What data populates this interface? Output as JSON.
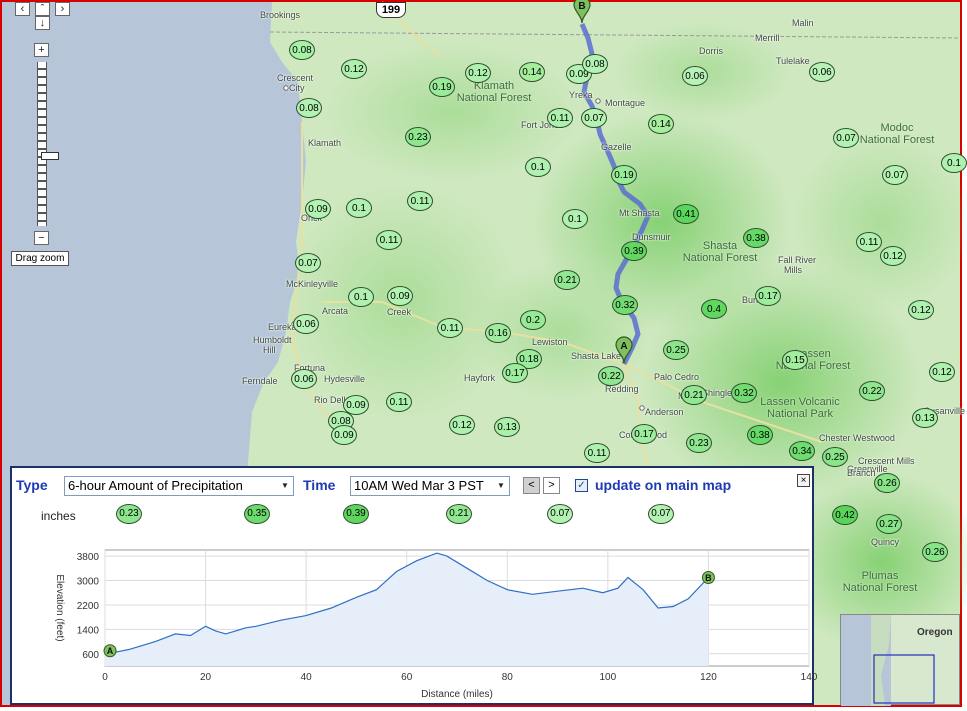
{
  "map": {
    "markers": [
      {
        "v": "0.08",
        "x": 300,
        "y": 48,
        "c": "#a8f2a8"
      },
      {
        "v": "0.12",
        "x": 352,
        "y": 67,
        "c": "#aef0ae"
      },
      {
        "v": "0.19",
        "x": 440,
        "y": 85,
        "c": "#98ec98"
      },
      {
        "v": "0.12",
        "x": 476,
        "y": 71,
        "c": "#aef0ae"
      },
      {
        "v": "0.14",
        "x": 530,
        "y": 70,
        "c": "#a6ee9e"
      },
      {
        "v": "0.09",
        "x": 577,
        "y": 72,
        "c": "#b2f2b2"
      },
      {
        "v": "0.08",
        "x": 593,
        "y": 62,
        "c": "#b2f2b2"
      },
      {
        "v": "0.06",
        "x": 693,
        "y": 74,
        "c": "#b8f2b8"
      },
      {
        "v": "0.06",
        "x": 820,
        "y": 70,
        "c": "#b8f2b8"
      },
      {
        "v": "0.08",
        "x": 307,
        "y": 106,
        "c": "#b2f2b2"
      },
      {
        "v": "0.11",
        "x": 558,
        "y": 116,
        "c": "#aef0ae"
      },
      {
        "v": "0.07",
        "x": 592,
        "y": 116,
        "c": "#b4f2b4"
      },
      {
        "v": "0.14",
        "x": 659,
        "y": 122,
        "c": "#a6ee9e"
      },
      {
        "v": "0.07",
        "x": 844,
        "y": 136,
        "c": "#b4f2b4"
      },
      {
        "v": "0.23",
        "x": 416,
        "y": 135,
        "c": "#8ee68e"
      },
      {
        "v": "0.1",
        "x": 536,
        "y": 165,
        "c": "#b0f0b0"
      },
      {
        "v": "0.19",
        "x": 622,
        "y": 173,
        "c": "#98ec98"
      },
      {
        "v": "0.07",
        "x": 893,
        "y": 173,
        "c": "#b4f2b4"
      },
      {
        "v": "0.1",
        "x": 952,
        "y": 161,
        "c": "#b0f0b0"
      },
      {
        "v": "0.09",
        "x": 316,
        "y": 207,
        "c": "#b2f2b2"
      },
      {
        "v": "0.1",
        "x": 357,
        "y": 206,
        "c": "#b0f0b0"
      },
      {
        "v": "0.11",
        "x": 418,
        "y": 199,
        "c": "#aef0ae"
      },
      {
        "v": "0.1",
        "x": 573,
        "y": 217,
        "c": "#b0f0b0"
      },
      {
        "v": "0.41",
        "x": 684,
        "y": 212,
        "c": "#5ad65a"
      },
      {
        "v": "0.11",
        "x": 387,
        "y": 238,
        "c": "#aef0ae"
      },
      {
        "v": "0.39",
        "x": 632,
        "y": 249,
        "c": "#62d862"
      },
      {
        "v": "0.38",
        "x": 754,
        "y": 236,
        "c": "#66da66"
      },
      {
        "v": "0.11",
        "x": 867,
        "y": 240,
        "c": "#aef0ae"
      },
      {
        "v": "0.12",
        "x": 891,
        "y": 254,
        "c": "#aef0ae"
      },
      {
        "v": "0.07",
        "x": 306,
        "y": 261,
        "c": "#b4f2b4"
      },
      {
        "v": "0.21",
        "x": 565,
        "y": 278,
        "c": "#92e892"
      },
      {
        "v": "0.1",
        "x": 359,
        "y": 295,
        "c": "#b0f0b0"
      },
      {
        "v": "0.09",
        "x": 398,
        "y": 294,
        "c": "#b2f2b2"
      },
      {
        "v": "0.32",
        "x": 623,
        "y": 303,
        "c": "#72dc72"
      },
      {
        "v": "0.4",
        "x": 712,
        "y": 307,
        "c": "#5ed85e"
      },
      {
        "v": "0.17",
        "x": 766,
        "y": 294,
        "c": "#9eec9e"
      },
      {
        "v": "0.12",
        "x": 919,
        "y": 308,
        "c": "#aef0ae"
      },
      {
        "v": "0.06",
        "x": 304,
        "y": 322,
        "c": "#b8f2b8"
      },
      {
        "v": "0.11",
        "x": 448,
        "y": 326,
        "c": "#aef0ae"
      },
      {
        "v": "0.16",
        "x": 496,
        "y": 331,
        "c": "#a0ec9e"
      },
      {
        "v": "0.2",
        "x": 531,
        "y": 318,
        "c": "#96ea96"
      },
      {
        "v": "0.25",
        "x": 674,
        "y": 348,
        "c": "#8ae48a"
      },
      {
        "v": "0.18",
        "x": 527,
        "y": 357,
        "c": "#9aec9a"
      },
      {
        "v": "0.17",
        "x": 513,
        "y": 371,
        "c": "#9eec9e"
      },
      {
        "v": "0.22",
        "x": 609,
        "y": 374,
        "c": "#90e690"
      },
      {
        "v": "0.15",
        "x": 793,
        "y": 358,
        "c": "#a2ee9e"
      },
      {
        "v": "0.12",
        "x": 940,
        "y": 370,
        "c": "#aef0ae"
      },
      {
        "v": "0.06",
        "x": 302,
        "y": 377,
        "c": "#b8f2b8"
      },
      {
        "v": "0.21",
        "x": 692,
        "y": 393,
        "c": "#92e892"
      },
      {
        "v": "0.32",
        "x": 742,
        "y": 391,
        "c": "#72dc72"
      },
      {
        "v": "0.22",
        "x": 870,
        "y": 389,
        "c": "#90e690"
      },
      {
        "v": "0.09",
        "x": 354,
        "y": 403,
        "c": "#b2f2b2"
      },
      {
        "v": "0.11",
        "x": 397,
        "y": 400,
        "c": "#aef0ae"
      },
      {
        "v": "0.08",
        "x": 339,
        "y": 419,
        "c": "#b2f2b2"
      },
      {
        "v": "0.09",
        "x": 342,
        "y": 433,
        "c": "#b2f2b2"
      },
      {
        "v": "0.12",
        "x": 460,
        "y": 423,
        "c": "#aef0ae"
      },
      {
        "v": "0.13",
        "x": 505,
        "y": 425,
        "c": "#aaf0aa"
      },
      {
        "v": "0.13",
        "x": 923,
        "y": 416,
        "c": "#aaf0aa"
      },
      {
        "v": "0.17",
        "x": 642,
        "y": 432,
        "c": "#9eec9e"
      },
      {
        "v": "0.23",
        "x": 697,
        "y": 441,
        "c": "#8ee68e"
      },
      {
        "v": "0.38",
        "x": 758,
        "y": 433,
        "c": "#66da66"
      },
      {
        "v": "0.34",
        "x": 800,
        "y": 449,
        "c": "#6edc6e"
      },
      {
        "v": "0.25",
        "x": 833,
        "y": 455,
        "c": "#8ae48a"
      },
      {
        "v": "0.11",
        "x": 595,
        "y": 451,
        "c": "#aef0ae"
      },
      {
        "v": "0.26",
        "x": 885,
        "y": 481,
        "c": "#88e488"
      },
      {
        "v": "0.42",
        "x": 843,
        "y": 513,
        "c": "#58d458"
      },
      {
        "v": "0.27",
        "x": 887,
        "y": 522,
        "c": "#86e486"
      },
      {
        "v": "0.26",
        "x": 933,
        "y": 550,
        "c": "#88e488"
      }
    ],
    "labels": [
      {
        "t": "Brookings",
        "x": 258,
        "y": 8
      },
      {
        "t": "Crescent",
        "x": 275,
        "y": 71
      },
      {
        "t": "City",
        "x": 287,
        "y": 81
      },
      {
        "t": "Klamath",
        "x": 306,
        "y": 136
      },
      {
        "t": "Yreka",
        "x": 567,
        "y": 88
      },
      {
        "t": "Montague",
        "x": 603,
        "y": 96
      },
      {
        "t": "Fort Jones",
        "x": 519,
        "y": 118
      },
      {
        "t": "Gazelle",
        "x": 599,
        "y": 140
      },
      {
        "t": "Mt Shasta",
        "x": 617,
        "y": 206
      },
      {
        "t": "Dunsmuir",
        "x": 630,
        "y": 230
      },
      {
        "t": "McKinleyville",
        "x": 284,
        "y": 277
      },
      {
        "t": "Arcata",
        "x": 320,
        "y": 304
      },
      {
        "t": "Eureka",
        "x": 266,
        "y": 320
      },
      {
        "t": "Humboldt",
        "x": 251,
        "y": 333
      },
      {
        "t": "Hill",
        "x": 261,
        "y": 343
      },
      {
        "t": "Fortuna",
        "x": 292,
        "y": 361
      },
      {
        "t": "Hydesville",
        "x": 322,
        "y": 372
      },
      {
        "t": "Ferndale",
        "x": 240,
        "y": 374
      },
      {
        "t": "Rio Dell",
        "x": 312,
        "y": 393
      },
      {
        "t": "Lewiston",
        "x": 530,
        "y": 335
      },
      {
        "t": "Shasta Lake",
        "x": 569,
        "y": 349
      },
      {
        "t": "Hayfork",
        "x": 462,
        "y": 371
      },
      {
        "t": "Palo Cedro",
        "x": 652,
        "y": 370
      },
      {
        "t": "Redding",
        "x": 603,
        "y": 382
      },
      {
        "t": "Millville",
        "x": 676,
        "y": 389
      },
      {
        "t": "Anderson",
        "x": 643,
        "y": 405
      },
      {
        "t": "Cottonwood",
        "x": 617,
        "y": 428
      },
      {
        "t": "Dorris",
        "x": 697,
        "y": 44
      },
      {
        "t": "Malin",
        "x": 790,
        "y": 16
      },
      {
        "t": "Merrill",
        "x": 753,
        "y": 31
      },
      {
        "t": "Tulelake",
        "x": 774,
        "y": 54
      },
      {
        "t": "Fall River",
        "x": 776,
        "y": 253
      },
      {
        "t": "Mills",
        "x": 782,
        "y": 263
      },
      {
        "t": "Burney",
        "x": 740,
        "y": 293
      },
      {
        "t": "Chester Westwood",
        "x": 817,
        "y": 431
      },
      {
        "t": "Crescent Mills",
        "x": 856,
        "y": 454
      },
      {
        "t": "Quincy",
        "x": 869,
        "y": 535
      },
      {
        "t": "Greenville",
        "x": 845,
        "y": 462
      },
      {
        "t": "Susanville",
        "x": 922,
        "y": 404
      },
      {
        "t": "Orick",
        "x": 299,
        "y": 211
      },
      {
        "t": "Creek",
        "x": 385,
        "y": 305
      },
      {
        "t": "Shingletown",
        "x": 700,
        "y": 386
      },
      {
        "t": "Branch",
        "x": 845,
        "y": 466
      }
    ],
    "forests": [
      {
        "l1": "Klamath",
        "l2": "National Forest",
        "x": 492,
        "y": 88
      },
      {
        "l1": "Modoc",
        "l2": "National Forest",
        "x": 895,
        "y": 130
      },
      {
        "l1": "Shasta",
        "l2": "National Forest",
        "x": 718,
        "y": 248
      },
      {
        "l1": "Lassen",
        "l2": "National Forest",
        "x": 811,
        "y": 356
      },
      {
        "l1": "Lassen Volcanic",
        "l2": "National Park",
        "x": 798,
        "y": 404
      },
      {
        "l1": "Plumas",
        "l2": "National Forest",
        "x": 878,
        "y": 578
      }
    ],
    "pin_a": {
      "letter": "A",
      "x": 622,
      "y": 362
    },
    "pin_b": {
      "letter": "B",
      "x": 580,
      "y": 22
    },
    "shield": "199",
    "zoom_label": "Drag zoom",
    "overview_label": "Oregon",
    "route": [
      [
        580,
        22
      ],
      [
        586,
        36
      ],
      [
        590,
        52
      ],
      [
        586,
        70
      ],
      [
        582,
        90
      ],
      [
        590,
        104
      ],
      [
        595,
        118
      ],
      [
        598,
        132
      ],
      [
        606,
        150
      ],
      [
        612,
        164
      ],
      [
        616,
        178
      ],
      [
        622,
        190
      ],
      [
        638,
        202
      ],
      [
        646,
        214
      ],
      [
        640,
        228
      ],
      [
        632,
        244
      ],
      [
        624,
        258
      ],
      [
        616,
        272
      ],
      [
        614,
        286
      ],
      [
        620,
        300
      ],
      [
        632,
        316
      ],
      [
        636,
        332
      ],
      [
        630,
        346
      ],
      [
        622,
        362
      ]
    ]
  },
  "panel": {
    "type_label": "Type",
    "type_value": "6-hour Amount of Precipitation",
    "time_label": "Time",
    "time_value": "10AM Wed Mar 3 PST",
    "prev": "<",
    "next": ">",
    "update_label": "update on main map",
    "checked": "✓",
    "close": "×",
    "units": "inches",
    "precip": [
      {
        "v": "0.23",
        "c": "#8ee68e"
      },
      {
        "v": "0.35",
        "c": "#6cda6c"
      },
      {
        "v": "0.39",
        "c": "#5ed65e"
      },
      {
        "v": "0.21",
        "c": "#92e892"
      },
      {
        "v": "0.07",
        "c": "#b4f2b4"
      },
      {
        "v": "0.07",
        "c": "#b4f2b4"
      }
    ]
  },
  "chart_data": {
    "type": "area",
    "title": "",
    "xlabel": "Distance (miles)",
    "ylabel": "Elevation (feet)",
    "xlim": [
      0,
      140
    ],
    "ylim": [
      200,
      4000
    ],
    "x_ticks": [
      "0",
      "20",
      "40",
      "60",
      "80",
      "100",
      "120",
      "140"
    ],
    "y_ticks": [
      "600",
      "1400",
      "2200",
      "3000",
      "3800"
    ],
    "y_tick_values": [
      600,
      1400,
      2200,
      3000,
      3800
    ],
    "x_tick_values": [
      0,
      20,
      40,
      60,
      80,
      100,
      120,
      140
    ],
    "series": [
      {
        "x": [
          0,
          2,
          5,
          10,
          14,
          17,
          20,
          22,
          24,
          26,
          28,
          30,
          35,
          40,
          45,
          50,
          54,
          58,
          62,
          66,
          68,
          72,
          76,
          80,
          85,
          90,
          95,
          99,
          102,
          104,
          107,
          110,
          113,
          116,
          120
        ],
        "y": [
          600,
          650,
          750,
          1000,
          1250,
          1200,
          1500,
          1350,
          1250,
          1350,
          1450,
          1500,
          1700,
          1850,
          2100,
          2450,
          2700,
          3300,
          3650,
          3900,
          3800,
          3400,
          3000,
          2700,
          2550,
          2650,
          2750,
          2600,
          2750,
          3100,
          2700,
          2100,
          2150,
          2400,
          3100
        ]
      }
    ],
    "endpoints": [
      {
        "label": "A",
        "x": 1,
        "y": 700
      },
      {
        "label": "B",
        "x": 120,
        "y": 3100
      }
    ],
    "grid": true,
    "fill": "#e6eefa",
    "line": "#2d6fc4"
  }
}
